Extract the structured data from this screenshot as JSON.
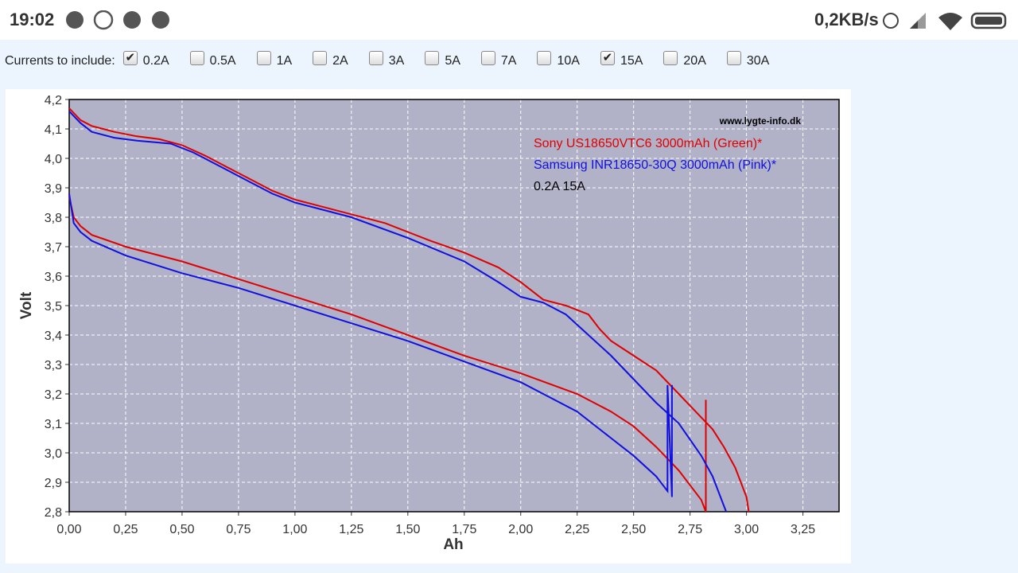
{
  "status_bar": {
    "time": "19:02",
    "speed": "0,2KB/s"
  },
  "filter": {
    "label": "Currents to include:",
    "options": [
      {
        "label": "0.2A",
        "checked": true
      },
      {
        "label": "0.5A",
        "checked": false
      },
      {
        "label": "1A",
        "checked": false
      },
      {
        "label": "2A",
        "checked": false
      },
      {
        "label": "3A",
        "checked": false
      },
      {
        "label": "5A",
        "checked": false
      },
      {
        "label": "7A",
        "checked": false
      },
      {
        "label": "10A",
        "checked": false
      },
      {
        "label": "15A",
        "checked": true
      },
      {
        "label": "20A",
        "checked": false
      },
      {
        "label": "30A",
        "checked": false
      }
    ]
  },
  "chart_data": {
    "type": "line",
    "x_label": "Ah",
    "y_label": "Volt",
    "watermark": "www.lygte-info.dk",
    "annotation": "0.2A 15A",
    "grid": true,
    "xlim": [
      0,
      3.41
    ],
    "ylim": [
      2.8,
      4.2
    ],
    "xticks": [
      {
        "value": 0,
        "label": "0,00"
      },
      {
        "value": 0.25,
        "label": "0,25"
      },
      {
        "value": 0.5,
        "label": "0,50"
      },
      {
        "value": 0.75,
        "label": "0,75"
      },
      {
        "value": 1,
        "label": "1,00"
      },
      {
        "value": 1.25,
        "label": "1,25"
      },
      {
        "value": 1.5,
        "label": "1,50"
      },
      {
        "value": 1.75,
        "label": "1,75"
      },
      {
        "value": 2,
        "label": "2,00"
      },
      {
        "value": 2.25,
        "label": "2,25"
      },
      {
        "value": 2.5,
        "label": "2,50"
      },
      {
        "value": 2.75,
        "label": "2,75"
      },
      {
        "value": 3,
        "label": "3,00"
      },
      {
        "value": 3.25,
        "label": "3,25"
      }
    ],
    "yticks": [
      {
        "value": 2.8,
        "label": "2,8"
      },
      {
        "value": 2.9,
        "label": "2,9"
      },
      {
        "value": 3.0,
        "label": "3,0"
      },
      {
        "value": 3.1,
        "label": "3,1"
      },
      {
        "value": 3.2,
        "label": "3,2"
      },
      {
        "value": 3.3,
        "label": "3,3"
      },
      {
        "value": 3.4,
        "label": "3,4"
      },
      {
        "value": 3.5,
        "label": "3,5"
      },
      {
        "value": 3.6,
        "label": "3,6"
      },
      {
        "value": 3.7,
        "label": "3,7"
      },
      {
        "value": 3.8,
        "label": "3,8"
      },
      {
        "value": 3.9,
        "label": "3,9"
      },
      {
        "value": 4.0,
        "label": "4,0"
      },
      {
        "value": 4.1,
        "label": "4,1"
      },
      {
        "value": 4.2,
        "label": "4,2"
      }
    ],
    "series": [
      {
        "name": "Sony US18650VTC6 3000mAh (Green)*",
        "color": "#e00000",
        "lines": [
          {
            "x": [
              0,
              0.05,
              0.1,
              0.2,
              0.3,
              0.4,
              0.5,
              0.6,
              0.7,
              0.8,
              0.9,
              1.0,
              1.1,
              1.25,
              1.4,
              1.5,
              1.6,
              1.75,
              1.9,
              2.0,
              2.1,
              2.2,
              2.3,
              2.35,
              2.4,
              2.5,
              2.6,
              2.7,
              2.8,
              2.85,
              2.9,
              2.95,
              3.0,
              3.01
            ],
            "values": [
              4.17,
              4.13,
              4.11,
              4.09,
              4.075,
              4.065,
              4.045,
              4.01,
              3.97,
              3.93,
              3.89,
              3.86,
              3.84,
              3.81,
              3.78,
              3.75,
              3.72,
              3.68,
              3.63,
              3.58,
              3.52,
              3.5,
              3.47,
              3.42,
              3.38,
              3.33,
              3.28,
              3.2,
              3.12,
              3.08,
              3.02,
              2.95,
              2.85,
              2.8
            ]
          },
          {
            "x": [
              0,
              0.02,
              0.05,
              0.1,
              0.25,
              0.5,
              0.75,
              1.0,
              1.25,
              1.5,
              1.75,
              2.0,
              2.25,
              2.4,
              2.5,
              2.6,
              2.7,
              2.8,
              2.82,
              2.82
            ],
            "values": [
              3.87,
              3.8,
              3.77,
              3.74,
              3.7,
              3.65,
              3.59,
              3.53,
              3.47,
              3.4,
              3.33,
              3.27,
              3.2,
              3.14,
              3.09,
              3.02,
              2.94,
              2.84,
              2.8,
              3.18
            ]
          }
        ]
      },
      {
        "name": "Samsung INR18650-30Q 3000mAh (Pink)*",
        "color": "#1010e0",
        "lines": [
          {
            "x": [
              0,
              0.05,
              0.1,
              0.2,
              0.3,
              0.45,
              0.55,
              0.7,
              0.8,
              0.9,
              1.0,
              1.1,
              1.25,
              1.5,
              1.75,
              1.9,
              2.0,
              2.1,
              2.2,
              2.3,
              2.4,
              2.5,
              2.6,
              2.7,
              2.8,
              2.85,
              2.9,
              2.91
            ],
            "values": [
              4.16,
              4.12,
              4.09,
              4.07,
              4.06,
              4.05,
              4.02,
              3.96,
              3.92,
              3.88,
              3.85,
              3.83,
              3.8,
              3.73,
              3.65,
              3.58,
              3.53,
              3.51,
              3.47,
              3.4,
              3.33,
              3.25,
              3.17,
              3.1,
              2.99,
              2.92,
              2.82,
              2.8
            ]
          },
          {
            "x": [
              0,
              0.02,
              0.05,
              0.1,
              0.25,
              0.5,
              0.75,
              1.0,
              1.25,
              1.5,
              1.75,
              2.0,
              2.1,
              2.25,
              2.4,
              2.5,
              2.6,
              2.65,
              2.65,
              2.67,
              2.67
            ],
            "values": [
              3.88,
              3.78,
              3.75,
              3.72,
              3.67,
              3.61,
              3.56,
              3.5,
              3.44,
              3.38,
              3.31,
              3.24,
              3.2,
              3.14,
              3.05,
              2.99,
              2.92,
              2.87,
              3.23,
              2.85,
              3.23
            ]
          }
        ]
      }
    ]
  }
}
